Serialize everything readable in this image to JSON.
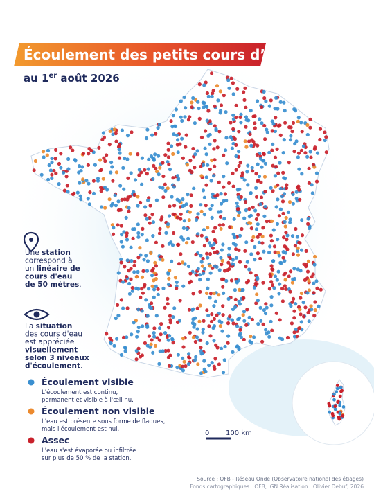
{
  "title": "Écoulement des petits cours d’eau",
  "subtitle": {
    "before": "au 1",
    "sup": "er",
    "after": " août 2026"
  },
  "notes": [
    {
      "lines": [
        [
          {
            "text": "Une ",
            "bold": false
          },
          {
            "text": "station",
            "bold": true
          }
        ],
        [
          {
            "text": "correspond à",
            "bold": false
          }
        ],
        [
          {
            "text": "un ",
            "bold": false
          },
          {
            "text": "linéaire de",
            "bold": true
          }
        ],
        [
          {
            "text": "cours d'eau",
            "bold": true
          }
        ],
        [
          {
            "text": "de 50 mètres",
            "bold": true
          },
          {
            "text": ".",
            "bold": false
          }
        ]
      ]
    },
    {
      "lines": [
        [
          {
            "text": "La ",
            "bold": false
          },
          {
            "text": "situation",
            "bold": true
          }
        ],
        [
          {
            "text": "des cours d'eau",
            "bold": false
          }
        ],
        [
          {
            "text": "est appréciée",
            "bold": false
          }
        ],
        [
          {
            "text": "visuellement",
            "bold": true
          }
        ],
        [
          {
            "text": "selon 3 niveaux",
            "bold": true
          }
        ],
        [
          {
            "text": "d'écoulement",
            "bold": true
          },
          {
            "text": ".",
            "bold": false
          }
        ]
      ]
    }
  ],
  "legend": [
    {
      "name": "Écoulement visible",
      "color": "#3a8fd0",
      "description": [
        "L'écoulement est continu,",
        "permanent et visible à l'œil nu."
      ]
    },
    {
      "name": "Écoulement non visible",
      "color": "#ec8a2e",
      "description": [
        "L'eau est présente sous forme de flaques,",
        "mais l'écoulement est nul."
      ]
    },
    {
      "name": "Assec",
      "color": "#c9212b",
      "description": [
        "L'eau s'est évaporée ou infiltrée",
        "sur plus de 50 % de la station."
      ]
    }
  ],
  "scale": {
    "start": "0",
    "end": "100 km"
  },
  "source": [
    "Source : OFB - Réseau Onde (Observatoire national des étiages)",
    "Fonds cartographiques : OFB, IGN Réalisation : Olivier Debuf, 2026"
  ]
}
